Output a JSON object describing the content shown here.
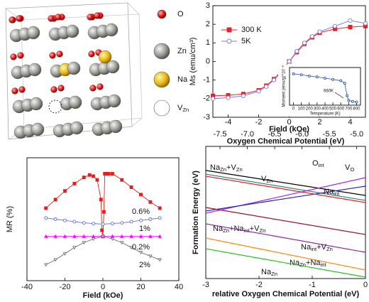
{
  "structure": {
    "legend": [
      [
        {
          "t": "O"
        }
      ],
      [
        {
          "t": "Zn"
        }
      ],
      [
        {
          "t": "Na"
        }
      ],
      [
        {
          "t": "V"
        },
        {
          "sub": "Zn"
        }
      ]
    ]
  },
  "chart_data": [
    {
      "type": "line",
      "x_label": "Field (kOe)",
      "y_label": "Ms (emu/cm³)",
      "xlim": [
        -5,
        5
      ],
      "ylim": [
        -3,
        3
      ],
      "xticks": [
        -4,
        -2,
        0,
        2,
        4
      ],
      "yticks": [
        -3,
        -2,
        -1,
        0,
        1,
        2,
        3
      ],
      "legend": "upper left",
      "x": [
        -5,
        -4,
        -3,
        -2,
        -1.5,
        -1,
        -0.5,
        0,
        0.5,
        1,
        1.5,
        2,
        3,
        4,
        5
      ],
      "series": [
        {
          "name": "300 K",
          "color": "#e8202a",
          "marker": "square-filled",
          "values": [
            -1.85,
            -1.82,
            -1.75,
            -1.55,
            -1.3,
            -0.95,
            -0.5,
            0,
            0.5,
            0.95,
            1.3,
            1.55,
            1.75,
            1.85,
            1.9
          ]
        },
        {
          "name": "5K",
          "color": "#7a80e0",
          "marker": "circle-open",
          "values": [
            -2.0,
            -1.95,
            -1.85,
            -1.6,
            -1.35,
            -1.0,
            -0.55,
            0,
            0.55,
            1.0,
            1.35,
            1.6,
            1.9,
            2.2,
            2.05
          ]
        }
      ]
    },
    {
      "type": "line",
      "x_label": "Temperature (K)",
      "y_label": "Moment (emu/g)*10⁻³",
      "annotations": [
        "660K"
      ],
      "xlim": [
        -50,
        850
      ],
      "ylim": [
        0,
        1.2
      ],
      "xticks": [
        0,
        100,
        200,
        300,
        400,
        500,
        600,
        700,
        800
      ],
      "x": [
        0,
        100,
        200,
        300,
        400,
        500,
        600,
        650,
        680,
        700,
        750,
        800
      ],
      "series": [
        {
          "color": "#3050b0",
          "marker": "circle-open",
          "values": [
            1.0,
            0.97,
            0.93,
            0.9,
            0.86,
            0.82,
            0.78,
            0.7,
            0.3,
            0.15,
            0.12,
            0.1
          ]
        }
      ]
    },
    {
      "type": "line",
      "x_label": "Field (kOe)",
      "y_label": "MR (%)",
      "annotations": [
        "0.6%",
        "1%",
        "0.2%",
        "2%"
      ],
      "xlim": [
        -40,
        40
      ],
      "ylim": [
        -3.6,
        6.4
      ],
      "xticks": [
        -40,
        -20,
        0,
        20,
        40
      ],
      "series": [
        {
          "color": "#e02020",
          "marker": "square-filled",
          "x": [
            -30,
            -25,
            -20,
            -15,
            -10,
            -7,
            -5,
            -3,
            -1,
            -0.5,
            0,
            0.5,
            1,
            2,
            3,
            5,
            10,
            15,
            20,
            25,
            30
          ],
          "values": [
            2.3,
            3.0,
            3.7,
            4.3,
            4.8,
            5.0,
            4.9,
            4.6,
            3.0,
            0.5,
            0,
            2.0,
            5.1,
            5.1,
            5.1,
            5.1,
            4.6,
            4.0,
            3.4,
            2.8,
            2.3
          ]
        },
        {
          "color": "#6070e0",
          "marker": "circle-open",
          "x": [
            -30,
            -25,
            -20,
            -15,
            -10,
            -5,
            0,
            5,
            10,
            15,
            20,
            25,
            30
          ],
          "values": [
            1.5,
            1.4,
            1.3,
            1.2,
            1.1,
            1.05,
            1.0,
            1.05,
            1.1,
            1.2,
            1.3,
            1.4,
            1.5
          ]
        },
        {
          "color": "#ff00ff",
          "marker": "triangle-up",
          "x": [
            -30,
            -25,
            -20,
            -15,
            -10,
            -5,
            0,
            5,
            10,
            15,
            20,
            25,
            30
          ],
          "values": [
            0,
            0,
            0,
            0,
            0,
            0,
            0,
            0,
            0,
            0,
            0,
            0,
            0
          ]
        },
        {
          "color": "#707070",
          "marker": "triangle-down-open",
          "x": [
            -30,
            -25,
            -20,
            -15,
            -10,
            -5,
            0,
            5,
            10,
            15,
            20,
            25,
            30
          ],
          "values": [
            -2.3,
            -1.9,
            -1.4,
            -0.9,
            -0.5,
            -0.2,
            0,
            -0.2,
            -0.5,
            -0.9,
            -1.3,
            -1.6,
            -1.9
          ]
        }
      ]
    },
    {
      "type": "line",
      "x_label": "relative Oxygen Chemical Potential (eV)",
      "x2_label": "Oxygen Chemical Potential (eV)",
      "y_label": "Formation Energy (eV)",
      "xlim": [
        -3,
        0
      ],
      "xticks": [
        -3,
        -2,
        -1,
        0
      ],
      "x2lim": [
        -7.76,
        -4.84
      ],
      "x2ticks": [
        -7.5,
        {
          "value": -7,
          "label": "-7.0"
        },
        -6.5,
        {
          "value": -6,
          "label": "-6.0"
        },
        -5.5,
        {
          "value": -5,
          "label": "-5.0"
        }
      ],
      "ylim": [
        -4.5,
        4.5
      ],
      "x": [
        -3,
        0
      ],
      "series": [
        {
          "label": [
            {
              "t": "O"
            },
            {
              "sub": "int"
            }
          ],
          "color": "#000000",
          "values": [
            2.86,
            1.16
          ]
        },
        {
          "label": [
            {
              "t": "Na"
            },
            {
              "sub": "Zn"
            },
            {
              "t": "+V"
            },
            {
              "sub": "Zn"
            }
          ],
          "color": "#2a7f7f",
          "values": [
            2.61,
            0.82
          ]
        },
        {
          "label": [
            {
              "t": "V"
            },
            {
              "sub": "O"
            }
          ],
          "color": "#a020f0",
          "values": [
            -0.05,
            2.37
          ]
        },
        {
          "label": [
            {
              "t": "Na"
            },
            {
              "sub": "int"
            }
          ],
          "color": "#2020b0",
          "values": [
            0.1,
            1.79
          ]
        },
        {
          "label": [
            {
              "t": "V"
            },
            {
              "sub": "Zn"
            }
          ],
          "color": "#e02020",
          "values": [
            2.47,
            0.68
          ]
        },
        {
          "label": [
            {
              "t": "Na"
            },
            {
              "sub": "Zn"
            },
            {
              "t": "+Na"
            },
            {
              "sub": "int"
            },
            {
              "t": "+V"
            },
            {
              "sub": "Zn"
            }
          ],
          "color": "#a01030",
          "values": [
            0.34,
            -1.5
          ]
        },
        {
          "label": [
            {
              "t": "Na"
            },
            {
              "sub": "int"
            },
            {
              "t": "+V"
            },
            {
              "sub": "Zn"
            }
          ],
          "color": "#9020a0",
          "values": [
            -0.77,
            -2.71
          ]
        },
        {
          "label": [
            {
              "t": "Na"
            },
            {
              "sub": "Zn"
            },
            {
              "t": "+Na"
            },
            {
              "sub": "int"
            }
          ],
          "color": "#ff8000",
          "values": [
            -1.74,
            -3.92
          ]
        },
        {
          "label": [
            {
              "t": "Na"
            },
            {
              "sub": "Zn"
            }
          ],
          "color": "#20c020",
          "values": [
            -2.47,
            -4.4
          ]
        }
      ]
    }
  ]
}
